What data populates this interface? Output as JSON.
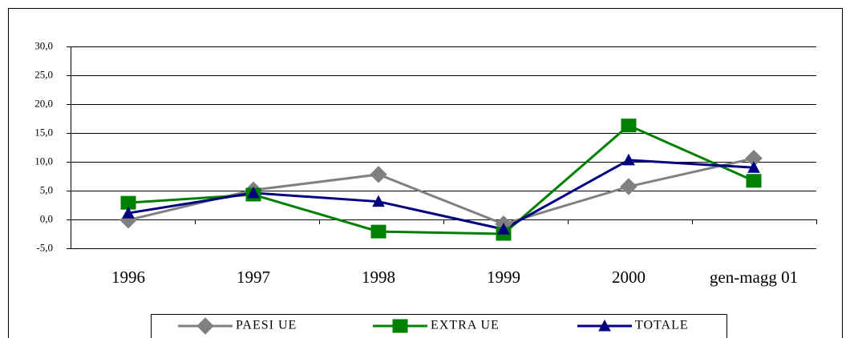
{
  "chart_data": {
    "type": "line",
    "categories": [
      "1996",
      "1997",
      "1998",
      "1999",
      "2000",
      "gen-magg 01"
    ],
    "series": [
      {
        "name": "PAESI UE",
        "color": "#808080",
        "marker": "diamond",
        "values": [
          -0.1,
          5.1,
          7.8,
          -0.8,
          5.7,
          10.6
        ]
      },
      {
        "name": "EXTRA UE",
        "color": "#008000",
        "marker": "square",
        "values": [
          2.9,
          4.3,
          -2.1,
          -2.5,
          16.3,
          6.7
        ]
      },
      {
        "name": "TOTALE",
        "color": "#000080",
        "marker": "triangle",
        "values": [
          1.1,
          4.6,
          3.1,
          -1.7,
          10.3,
          9.0
        ]
      }
    ],
    "ylim": [
      -5,
      30
    ],
    "yticks": [
      {
        "value": -5,
        "label": "-5,0"
      },
      {
        "value": 0,
        "label": "0,0"
      },
      {
        "value": 5,
        "label": "5,0"
      },
      {
        "value": 10,
        "label": "10,0"
      },
      {
        "value": 15,
        "label": "15,0"
      },
      {
        "value": 20,
        "label": "20,0"
      },
      {
        "value": 25,
        "label": "25,0"
      },
      {
        "value": 30,
        "label": "30,0"
      }
    ],
    "grid": true
  }
}
